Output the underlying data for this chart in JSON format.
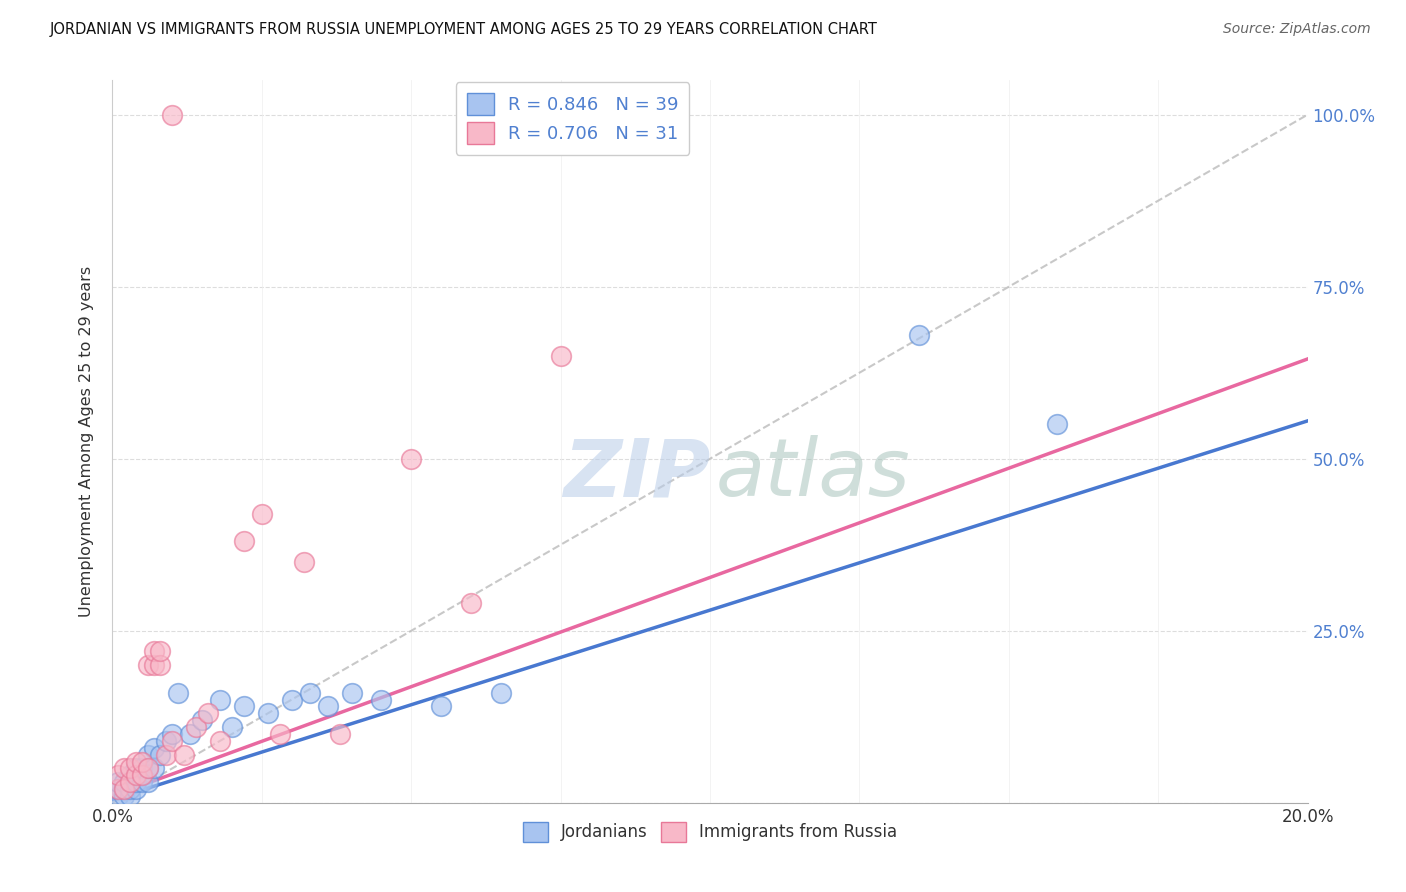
{
  "title": "JORDANIAN VS IMMIGRANTS FROM RUSSIA UNEMPLOYMENT AMONG AGES 25 TO 29 YEARS CORRELATION CHART",
  "source": "Source: ZipAtlas.com",
  "ylabel": "Unemployment Among Ages 25 to 29 years",
  "xlim": [
    0.0,
    0.2
  ],
  "ylim": [
    0.0,
    1.05
  ],
  "xticks": [
    0.0,
    0.025,
    0.05,
    0.075,
    0.1,
    0.125,
    0.15,
    0.175,
    0.2
  ],
  "yticks": [
    0.0,
    0.25,
    0.5,
    0.75,
    1.0
  ],
  "jordanians_R": 0.846,
  "jordanians_N": 39,
  "russia_R": 0.706,
  "russia_N": 31,
  "blue_scatter_color": "#A8C4F0",
  "blue_edge_color": "#6090D8",
  "pink_scatter_color": "#F8B8C8",
  "pink_edge_color": "#E87898",
  "blue_line_color": "#4878D0",
  "pink_line_color": "#E868A0",
  "diag_color": "#BBBBBB",
  "grid_color": "#DDDDDD",
  "right_axis_color": "#5080D0",
  "jordanians_x": [
    0.001,
    0.001,
    0.001,
    0.002,
    0.002,
    0.002,
    0.003,
    0.003,
    0.003,
    0.003,
    0.004,
    0.004,
    0.004,
    0.005,
    0.005,
    0.006,
    0.006,
    0.006,
    0.007,
    0.007,
    0.008,
    0.009,
    0.01,
    0.011,
    0.013,
    0.015,
    0.018,
    0.02,
    0.022,
    0.026,
    0.03,
    0.033,
    0.036,
    0.04,
    0.045,
    0.055,
    0.065,
    0.135,
    0.158
  ],
  "jordanians_y": [
    0.01,
    0.02,
    0.03,
    0.01,
    0.02,
    0.03,
    0.01,
    0.02,
    0.03,
    0.04,
    0.02,
    0.03,
    0.05,
    0.03,
    0.05,
    0.03,
    0.05,
    0.07,
    0.05,
    0.08,
    0.07,
    0.09,
    0.1,
    0.16,
    0.1,
    0.12,
    0.15,
    0.11,
    0.14,
    0.13,
    0.15,
    0.16,
    0.14,
    0.16,
    0.15,
    0.14,
    0.16,
    0.68,
    0.55
  ],
  "russia_x": [
    0.001,
    0.001,
    0.002,
    0.002,
    0.003,
    0.003,
    0.004,
    0.004,
    0.005,
    0.005,
    0.006,
    0.006,
    0.007,
    0.007,
    0.008,
    0.008,
    0.009,
    0.01,
    0.012,
    0.014,
    0.016,
    0.018,
    0.022,
    0.025,
    0.028,
    0.032,
    0.038,
    0.05,
    0.06,
    0.075,
    0.01
  ],
  "russia_y": [
    0.02,
    0.04,
    0.02,
    0.05,
    0.03,
    0.05,
    0.04,
    0.06,
    0.04,
    0.06,
    0.05,
    0.2,
    0.2,
    0.22,
    0.2,
    0.22,
    0.07,
    0.09,
    0.07,
    0.11,
    0.13,
    0.09,
    0.38,
    0.42,
    0.1,
    0.35,
    0.1,
    0.5,
    0.29,
    0.65,
    1.0
  ],
  "jord_line_x0": 0.0,
  "jord_line_x1": 0.2,
  "jord_line_y0": 0.005,
  "jord_line_y1": 0.555,
  "rus_line_x0": 0.0,
  "rus_line_x1": 0.2,
  "rus_line_y0": 0.01,
  "rus_line_y1": 0.645
}
